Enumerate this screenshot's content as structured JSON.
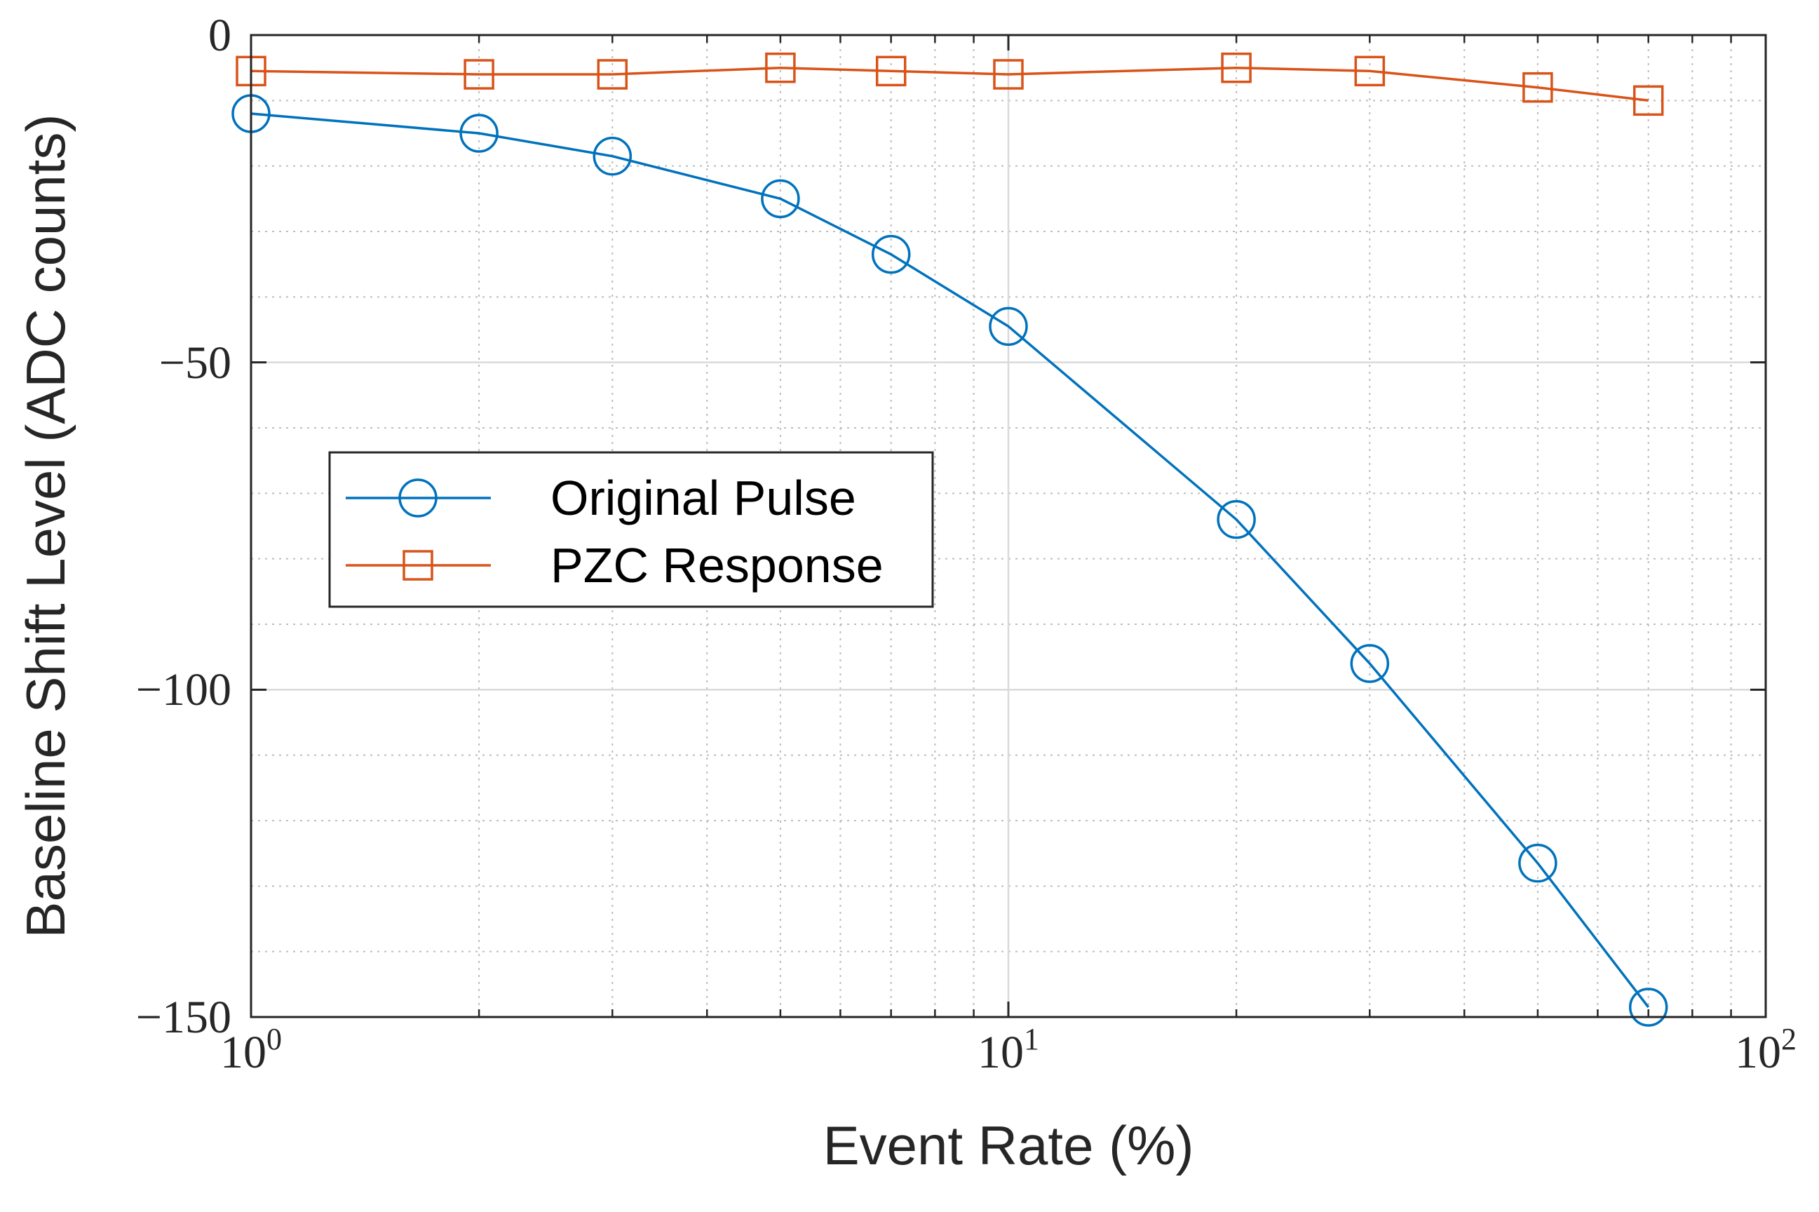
{
  "chart_data": {
    "type": "line",
    "title": "",
    "xlabel": "Event Rate (%)",
    "ylabel": "Baseline Shift Level (ADC counts)",
    "xscale": "log",
    "xlim": [
      1,
      100
    ],
    "ylim": [
      -150,
      0
    ],
    "grid": true,
    "x_ticks": [
      {
        "value": 1,
        "base": "10",
        "exp": "0"
      },
      {
        "value": 10,
        "base": "10",
        "exp": "1"
      },
      {
        "value": 100,
        "base": "10",
        "exp": "2"
      }
    ],
    "y_ticks": [
      {
        "value": 0,
        "label": "0"
      },
      {
        "value": -50,
        "label": "−50"
      },
      {
        "value": -100,
        "label": "−100"
      },
      {
        "value": -150,
        "label": "−150"
      }
    ],
    "legend_position": "center-left",
    "series": [
      {
        "name": "Original Pulse",
        "color": "#0072BD",
        "marker": "circle",
        "x": [
          1,
          2,
          3,
          5,
          7,
          10,
          20,
          30,
          50,
          70
        ],
        "y": [
          -12,
          -15,
          -18.5,
          -25,
          -33.5,
          -44.5,
          -74,
          -96,
          -126.5,
          -148.5
        ]
      },
      {
        "name": "PZC Response",
        "color": "#D95319",
        "marker": "square",
        "x": [
          1,
          2,
          3,
          5,
          7,
          10,
          20,
          30,
          50,
          70
        ],
        "y": [
          -5.5,
          -6,
          -6,
          -5,
          -5.5,
          -6,
          -5,
          -5.5,
          -8,
          -10
        ]
      }
    ]
  }
}
